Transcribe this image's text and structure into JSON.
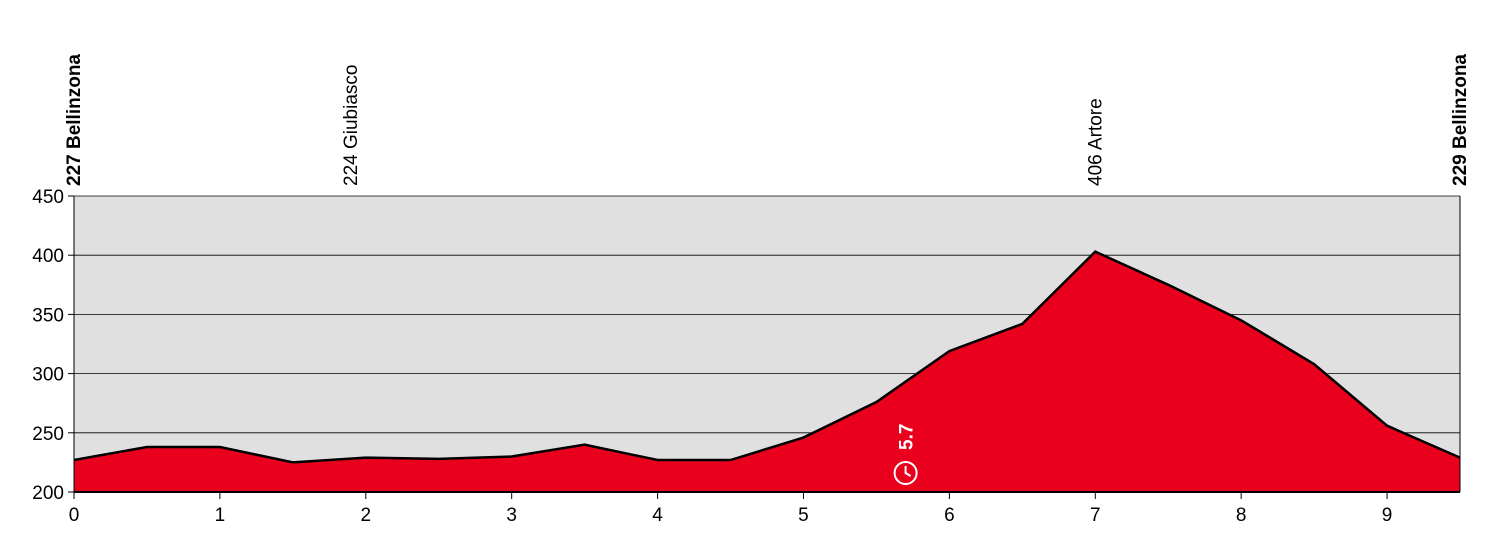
{
  "chart_data": {
    "type": "area",
    "x": [
      0,
      0.5,
      1,
      1.5,
      2,
      2.5,
      3,
      3.5,
      4,
      4.5,
      5,
      5.5,
      6,
      6.5,
      7,
      7.5,
      8,
      8.5,
      9,
      9.5
    ],
    "values": [
      227,
      238,
      238,
      225,
      229,
      228,
      230,
      240,
      227,
      227,
      246,
      276,
      319,
      342,
      403,
      375,
      345,
      308,
      256,
      229
    ],
    "color": "#e8001c",
    "background": "#e0e0e0",
    "xlim": [
      0,
      9.5
    ],
    "xticks": [
      0,
      1,
      2,
      3,
      4,
      5,
      6,
      7,
      8,
      9
    ],
    "ylim": [
      200,
      450
    ],
    "yticks": [
      200,
      250,
      300,
      350,
      400,
      450
    ],
    "grid": true,
    "places": [
      {
        "x": 0,
        "label": "227 Bellinzona",
        "bold": true
      },
      {
        "x": 1.9,
        "label": "224 Giubiasco",
        "bold": false
      },
      {
        "x": 7,
        "label": "406 Artore",
        "bold": false
      },
      {
        "x": 9.5,
        "label": "229 Bellinzona",
        "bold": true
      }
    ],
    "sprint": {
      "x": 5.7,
      "label": "5.7"
    }
  }
}
